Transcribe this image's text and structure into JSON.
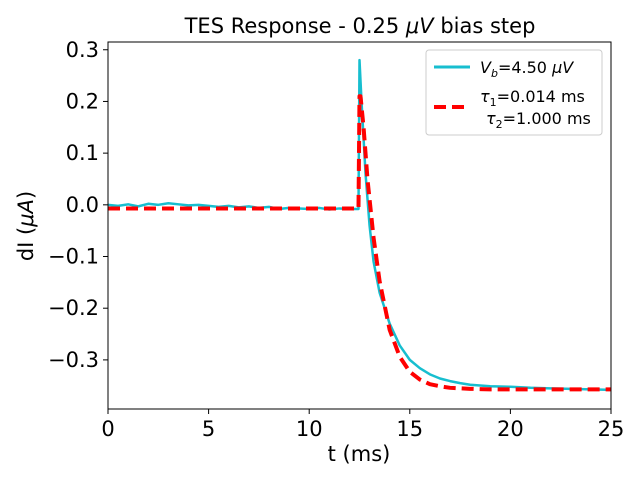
{
  "chart_data": {
    "type": "line",
    "title": "TES Response - 0.25 μV bias step",
    "title_parts": {
      "prefix": "TES Response - 0.25 ",
      "italic": "μV",
      "suffix": " bias step"
    },
    "xlabel": "t (ms)",
    "ylabel": "dI (μA)",
    "ylabel_parts": {
      "prefix": "dI (",
      "italic": "μA",
      "suffix": ")"
    },
    "xlim": [
      0,
      25
    ],
    "ylim": [
      -0.395,
      0.315
    ],
    "xticks": [
      0,
      5,
      10,
      15,
      20,
      25
    ],
    "xtick_labels": [
      "0",
      "5",
      "10",
      "15",
      "20",
      "25"
    ],
    "yticks": [
      0.3,
      0.2,
      0.1,
      0.0,
      -0.1,
      -0.2,
      -0.3
    ],
    "ytick_labels": [
      "0.3",
      "0.2",
      "0.1",
      "0.0",
      "−0.1",
      "−0.2",
      "−0.3"
    ],
    "grid": false,
    "legend_position": "top-right",
    "legend": [
      {
        "label": "Vb=4.50 μV",
        "label_parts": {
          "main": "V",
          "sub": "b",
          "rest": "=4.50 ",
          "italic": "μV"
        }
      },
      {
        "label": "τ1=0.014 ms τ2=1.000 ms",
        "line1": {
          "main": "τ",
          "sub": "1",
          "rest": "=0.014 ms"
        },
        "line2": {
          "main": "τ",
          "sub": "2",
          "rest": "=1.000 ms"
        }
      }
    ],
    "series": [
      {
        "name": "Vb=4.50 μV (data)",
        "color": "#17becf",
        "style": "solid",
        "x": [
          0,
          0.5,
          1,
          1.5,
          2,
          2.5,
          3,
          3.5,
          4,
          4.5,
          5,
          5.5,
          6,
          6.5,
          7,
          7.5,
          8,
          8.5,
          9,
          9.5,
          10,
          10.5,
          11,
          11.5,
          12,
          12.45,
          12.5,
          12.6,
          12.8,
          13,
          13.2,
          13.5,
          14,
          14.5,
          15,
          15.5,
          16,
          16.5,
          17,
          17.5,
          18,
          19,
          20,
          21,
          22,
          23,
          24,
          25
        ],
        "y": [
          0.0,
          -0.002,
          0.001,
          -0.003,
          0.002,
          0.0,
          0.003,
          0.001,
          -0.001,
          0.0,
          -0.002,
          -0.004,
          -0.002,
          -0.005,
          -0.003,
          -0.006,
          -0.004,
          -0.008,
          -0.006,
          -0.007,
          -0.008,
          -0.006,
          -0.009,
          -0.007,
          -0.008,
          -0.008,
          0.28,
          0.2,
          0.06,
          -0.04,
          -0.11,
          -0.17,
          -0.23,
          -0.272,
          -0.3,
          -0.316,
          -0.328,
          -0.336,
          -0.341,
          -0.345,
          -0.348,
          -0.351,
          -0.352,
          -0.354,
          -0.355,
          -0.356,
          -0.357,
          -0.358
        ]
      },
      {
        "name": "τ1=0.014 ms τ2=1.000 ms (fit)",
        "color": "#ff0000",
        "style": "dashed",
        "x": [
          0,
          12.45,
          12.5,
          12.55,
          12.7,
          12.9,
          13.2,
          13.5,
          14,
          14.5,
          15,
          15.5,
          16,
          16.5,
          17,
          17.5,
          18,
          19,
          20,
          21,
          22,
          23,
          24,
          25
        ],
        "y": [
          -0.007,
          -0.007,
          0.21,
          0.21,
          0.151,
          0.048,
          -0.064,
          -0.148,
          -0.242,
          -0.294,
          -0.323,
          -0.338,
          -0.347,
          -0.351,
          -0.354,
          -0.355,
          -0.356,
          -0.357,
          -0.357,
          -0.357,
          -0.357,
          -0.357,
          -0.357,
          -0.357
        ]
      }
    ]
  }
}
